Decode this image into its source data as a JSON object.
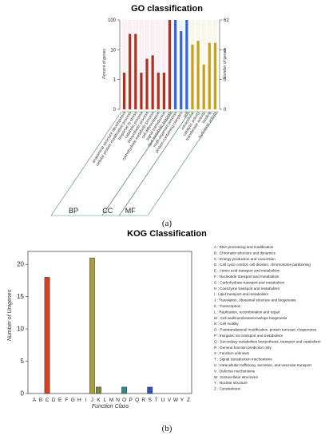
{
  "caption_a": "(a)",
  "caption_b": "(b)",
  "chart_data": [
    {
      "type": "bar",
      "title": "GO classification",
      "ylabel": "Percent of genes",
      "y2label": "Number of genes",
      "log_scale": true,
      "ylim": [
        0.1,
        100
      ],
      "left_ticks": [
        "100",
        "10",
        "1",
        "0"
      ],
      "right_ticks": [
        "62",
        "6",
        "0",
        "0"
      ],
      "grid": false,
      "categories": [
        "anatomical structure development",
        "cellular protein modification process",
        "response to stress",
        "catabolic process",
        "biosynthetic process",
        "carbohydrate metabolic process",
        "cell differentiation",
        "signal transduction",
        "lipid metabolic process",
        "multi-organism process",
        "protein-containing complex",
        "cell",
        "intracellular",
        "catalytic activity",
        "transferase activity",
        "binding",
        "hydrolase activity"
      ],
      "values": [
        1.7,
        34,
        34,
        1.7,
        5,
        6.5,
        1.7,
        1.7,
        100,
        100,
        42,
        100,
        15,
        20,
        3.2,
        17,
        17
      ],
      "groups": [
        {
          "name": "BP",
          "count": 9
        },
        {
          "name": "CC",
          "count": 3
        },
        {
          "name": "MF",
          "count": 5
        }
      ],
      "colors": {
        "BP": "#b03020",
        "CC": "#3366dd",
        "MF": "#c8a020"
      }
    },
    {
      "type": "bar",
      "title": "KOG Classification",
      "xlabel": "Function Class",
      "ylabel": "Number of Unigenes",
      "ylim": [
        0,
        22
      ],
      "yticks": [
        0,
        5,
        10,
        15,
        20
      ],
      "grid": false,
      "categories": [
        "A",
        "B",
        "C",
        "D",
        "E",
        "F",
        "G",
        "H",
        "I",
        "J",
        "K",
        "L",
        "M",
        "N",
        "O",
        "P",
        "Q",
        "R",
        "S",
        "T",
        "U",
        "V",
        "W",
        "Y",
        "Z"
      ],
      "values": [
        0,
        0,
        18,
        0,
        0,
        0,
        0,
        0,
        0,
        21,
        1,
        0,
        0,
        0,
        1,
        0,
        0,
        0,
        1,
        0,
        0,
        0,
        0,
        0,
        0
      ],
      "bar_colors": {
        "C": "#cc4422",
        "J": "#a8a040",
        "K": "#7a8a40",
        "O": "#3a8a8a",
        "S": "#3355bb"
      },
      "legend": [
        "A : RNA processing and modification",
        "B : Chromatin structure and dynamics",
        "C : Energy production and conversion",
        "D : Cell cycle control, cell division, chromosome partitioning",
        "E : Amino acid transport and metabolism",
        "F : Nucleotide transport and metabolism",
        "G : Carbohydrate transport and metabolism",
        "H : Coenzyme transport and metabolism",
        "I : Lipid transport and metabolism",
        "J : Translation, ribosomal structure and biogenesis",
        "K : Transcription",
        "L : Replication, recombination and repair",
        "M : Cell wall/membrane/envelope biogenesis",
        "N : Cell motility",
        "O : Posttranslational modification, protein turnover, chaperones",
        "P : Inorganic ion transport and metabolism",
        "Q : Secondary metabolites biosynthesis, transport and catabolism",
        "R : General function prediction only",
        "S : Function unknown",
        "T : Signal transduction mechanisms",
        "U : Intracellular trafficking, secretion, and vesicular transport",
        "V : Defense mechanisms",
        "W : Extracellular structures",
        "Y : Nuclear structure",
        "Z : Cytoskeleton"
      ],
      "legend_placement": "right"
    }
  ]
}
